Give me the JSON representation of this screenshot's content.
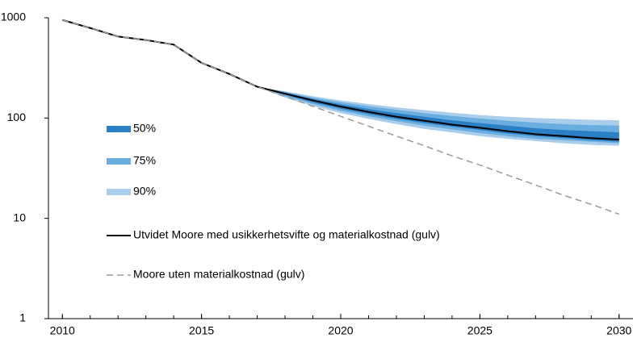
{
  "chart_data": {
    "type": "line",
    "log_y": true,
    "x": [
      2010,
      2011,
      2012,
      2013,
      2014,
      2015,
      2016,
      2017,
      2018,
      2019,
      2020,
      2021,
      2022,
      2023,
      2024,
      2025,
      2026,
      2027,
      2028,
      2029,
      2030
    ],
    "xlim": [
      2009.5,
      2030.5
    ],
    "xticks": [
      2010,
      2015,
      2020,
      2025,
      2030
    ],
    "ylim": [
      1,
      1000
    ],
    "yticks": [
      1,
      10,
      100,
      1000
    ],
    "bands": [
      {
        "name": "90%",
        "color": "#a9cdea",
        "upper": [
          null,
          null,
          null,
          null,
          null,
          null,
          null,
          205,
          185,
          165,
          150,
          138,
          128,
          120,
          113,
          107,
          103,
          100,
          98,
          96,
          95
        ],
        "lower": [
          null,
          null,
          null,
          null,
          null,
          null,
          null,
          205,
          160,
          132,
          112,
          98,
          87,
          78,
          72,
          66,
          62,
          59,
          56,
          54,
          53
        ]
      },
      {
        "name": "75%",
        "color": "#6aaee0",
        "upper": [
          null,
          null,
          null,
          null,
          null,
          null,
          null,
          205,
          182,
          160,
          144,
          131,
          121,
          112,
          105,
          99,
          94,
          90,
          87,
          85,
          84
        ],
        "lower": [
          null,
          null,
          null,
          null,
          null,
          null,
          null,
          205,
          165,
          138,
          118,
          104,
          93,
          84,
          77,
          71,
          66,
          62,
          60,
          58,
          56
        ]
      },
      {
        "name": "50%",
        "color": "#2b7fc4",
        "upper": [
          null,
          null,
          null,
          null,
          null,
          null,
          null,
          205,
          179,
          155,
          137,
          123,
          112,
          103,
          95,
          89,
          84,
          79,
          76,
          74,
          72
        ],
        "lower": [
          null,
          null,
          null,
          null,
          null,
          null,
          null,
          205,
          170,
          143,
          124,
          109,
          98,
          89,
          82,
          76,
          70,
          66,
          63,
          60,
          58
        ]
      }
    ],
    "series": [
      {
        "name": "Utvidet Moore med usikkerhetsvifte og materialkostnad (gulv)",
        "color": "#000000",
        "dashed": false,
        "values": [
          950,
          790,
          650,
          600,
          540,
          355,
          275,
          205,
          175,
          150,
          130,
          115,
          103,
          94,
          86,
          80,
          74,
          69,
          66,
          63,
          61
        ]
      },
      {
        "name": "Moore uten materialkostnad (gulv)",
        "color": "#9a9a9a",
        "dashed": true,
        "values": [
          950,
          790,
          650,
          600,
          540,
          355,
          275,
          205,
          164,
          131,
          104,
          83,
          66,
          53,
          42,
          34,
          27,
          21.5,
          17,
          13.8,
          11
        ]
      }
    ]
  }
}
